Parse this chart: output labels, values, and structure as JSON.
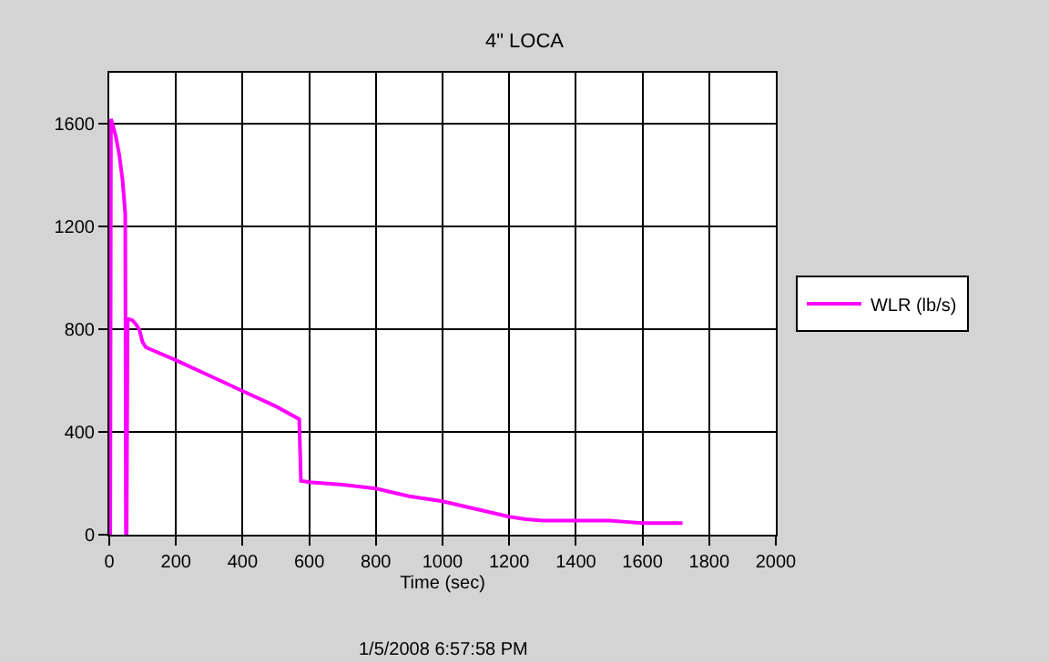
{
  "chart_data": {
    "type": "line",
    "title": "4\" LOCA",
    "xlabel": "Time (sec)",
    "annotations": [
      "1/5/2008 6:57:58 PM"
    ],
    "series": [
      {
        "name": "WLR (lb/s)",
        "color": "#ff00ff",
        "x": [
          0,
          3,
          5,
          10,
          20,
          30,
          40,
          48,
          50,
          52,
          55,
          60,
          70,
          80,
          90,
          100,
          110,
          200,
          300,
          400,
          500,
          570,
          575,
          600,
          700,
          800,
          900,
          1000,
          1100,
          1200,
          1250,
          1300,
          1400,
          1500,
          1550,
          1600,
          1700,
          1720
        ],
        "values": [
          0,
          0,
          1620,
          1600,
          1550,
          1480,
          1380,
          1250,
          0,
          0,
          840,
          840,
          835,
          820,
          800,
          750,
          730,
          680,
          620,
          560,
          500,
          450,
          210,
          205,
          195,
          180,
          150,
          130,
          100,
          70,
          60,
          55,
          55,
          55,
          50,
          45,
          45,
          45
        ]
      }
    ],
    "xlim": [
      0,
      2000
    ],
    "xticks": [
      0,
      200,
      400,
      600,
      800,
      1000,
      1200,
      1400,
      1600,
      1800,
      2000
    ],
    "ylim": [
      0,
      1800
    ],
    "yticks": [
      0,
      400,
      800,
      1200,
      1600
    ],
    "grid": true,
    "legend": "right",
    "marker": "none",
    "line_style": "solid"
  }
}
